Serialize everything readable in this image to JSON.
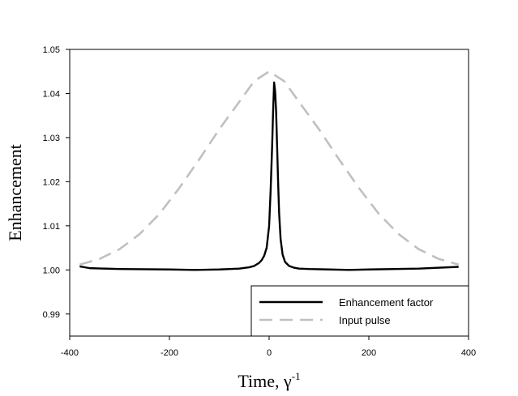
{
  "chart_data": {
    "type": "line",
    "xlabel": "Time, γ",
    "xlabel_superscript": "-1",
    "ylabel": "Enhancement",
    "xlim": [
      -400,
      400
    ],
    "ylim": [
      0.985,
      1.05
    ],
    "xticks": [
      -400,
      -200,
      0,
      200,
      400
    ],
    "xtick_labels": [
      "-400",
      "-200",
      "0",
      "200",
      "400"
    ],
    "yticks": [
      0.99,
      1.0,
      1.01,
      1.02,
      1.03,
      1.04,
      1.05
    ],
    "ytick_labels": [
      "0.99",
      "1.00",
      "1.01",
      "1.02",
      "1.03",
      "1.04",
      "1.05"
    ],
    "grid": false,
    "legend_position": "bottom-right",
    "series": [
      {
        "name": "Enhancement factor",
        "color": "#000000",
        "style": "solid",
        "x": [
          -380,
          -360,
          -300,
          -200,
          -150,
          -100,
          -60,
          -40,
          -30,
          -20,
          -15,
          -10,
          -5,
          0,
          3,
          6,
          8,
          10,
          12,
          14,
          16,
          18,
          20,
          23,
          27,
          32,
          40,
          50,
          60,
          80,
          120,
          160,
          200,
          300,
          380
        ],
        "y": [
          1.0008,
          1.0004,
          1.0002,
          1.0001,
          1.0,
          1.0001,
          1.0003,
          1.0006,
          1.0009,
          1.0016,
          1.0022,
          1.0032,
          1.005,
          1.01,
          1.018,
          1.028,
          1.036,
          1.0425,
          1.0405,
          1.036,
          1.028,
          1.02,
          1.013,
          1.007,
          1.0035,
          1.0018,
          1.0009,
          1.0005,
          1.0003,
          1.0002,
          1.0001,
          1.0,
          1.0001,
          1.0003,
          1.0007
        ]
      },
      {
        "name": "Input pulse",
        "color": "#c0c0c0",
        "style": "dashed",
        "x": [
          -380,
          -340,
          -300,
          -260,
          -220,
          -180,
          -140,
          -100,
          -60,
          -30,
          0,
          30,
          60,
          100,
          140,
          180,
          220,
          260,
          300,
          340,
          380
        ],
        "y": [
          1.0012,
          1.0025,
          1.0047,
          1.0081,
          1.0127,
          1.0186,
          1.0251,
          1.0319,
          1.0381,
          1.0428,
          1.045,
          1.0428,
          1.0381,
          1.0319,
          1.0251,
          1.0186,
          1.0127,
          1.0081,
          1.0047,
          1.0025,
          1.0012
        ]
      }
    ]
  }
}
